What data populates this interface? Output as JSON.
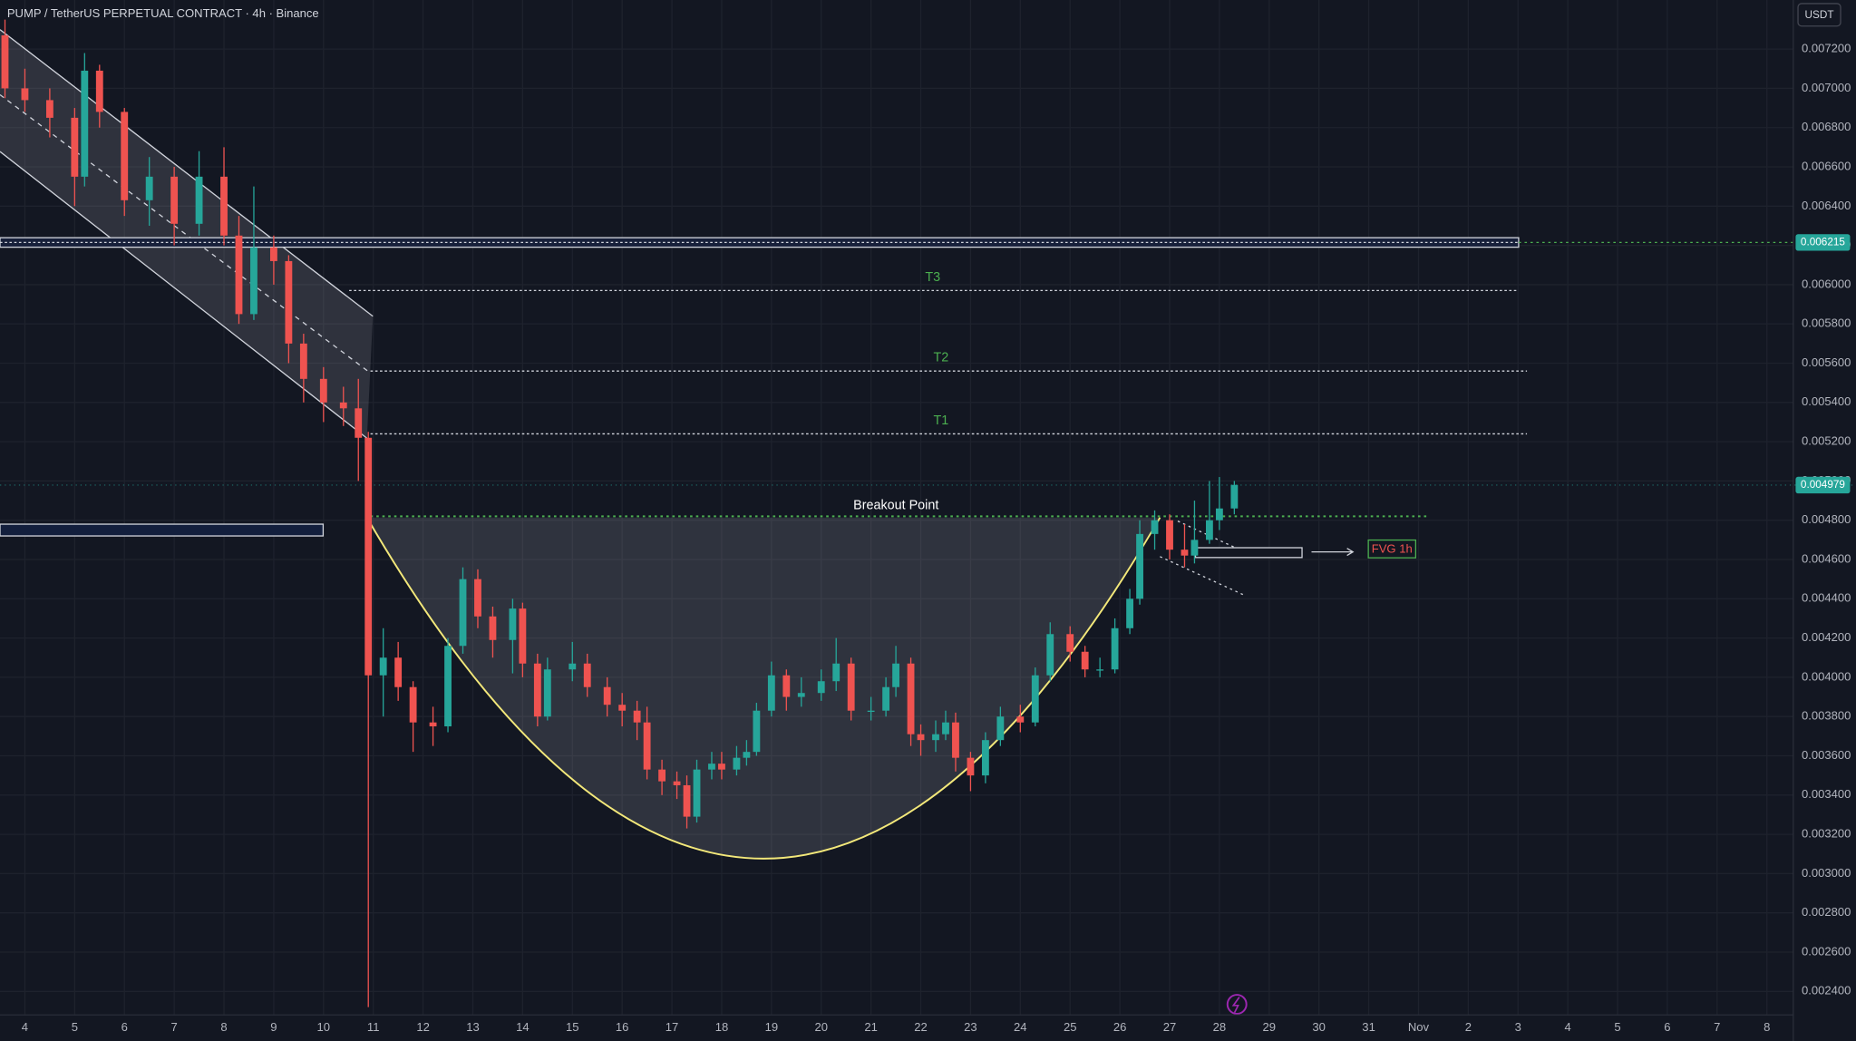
{
  "chart_data": {
    "type": "candlestick",
    "title": "PUMP / TetherUS PERPETUAL CONTRACT · 4h · Binance",
    "currency": "USDT",
    "up_color": "#26a69a",
    "down_color": "#ef5350",
    "xlim": [
      3.5,
      39.53
    ],
    "ylim": [
      0.00228,
      0.00745
    ],
    "grid": true,
    "xticks": [
      4,
      5,
      6,
      7,
      8,
      9,
      10,
      11,
      12,
      13,
      14,
      15,
      16,
      17,
      18,
      19,
      20,
      21,
      22,
      23,
      24,
      25,
      26,
      27,
      28,
      29,
      30,
      31,
      {
        "value": 32,
        "label": "Nov"
      },
      {
        "value": 33,
        "label": "2"
      },
      {
        "value": 34,
        "label": "3"
      },
      {
        "value": 35,
        "label": "4"
      },
      {
        "value": 36,
        "label": "5"
      },
      {
        "value": 37,
        "label": "6"
      },
      {
        "value": 38,
        "label": "7"
      },
      {
        "value": 39,
        "label": "8"
      }
    ],
    "yticks": [
      {
        "value": 0.0072,
        "label": "0.007200"
      },
      {
        "value": 0.007,
        "label": "0.007000"
      },
      {
        "value": 0.0068,
        "label": "0.006800"
      },
      {
        "value": 0.0066,
        "label": "0.006600"
      },
      {
        "value": 0.0064,
        "label": "0.006400"
      },
      {
        "value": 0.0062,
        "label": "0.006200"
      },
      {
        "value": 0.006,
        "label": "0.006000"
      },
      {
        "value": 0.0058,
        "label": "0.005800"
      },
      {
        "value": 0.0056,
        "label": "0.005600"
      },
      {
        "value": 0.0054,
        "label": "0.005400"
      },
      {
        "value": 0.0052,
        "label": "0.005200"
      },
      {
        "value": 0.005,
        "label": "0.005000"
      },
      {
        "value": 0.0048,
        "label": "0.004800"
      },
      {
        "value": 0.0046,
        "label": "0.004600"
      },
      {
        "value": 0.0044,
        "label": "0.004400"
      },
      {
        "value": 0.0042,
        "label": "0.004200"
      },
      {
        "value": 0.004,
        "label": "0.004000"
      },
      {
        "value": 0.0038,
        "label": "0.003800"
      },
      {
        "value": 0.0036,
        "label": "0.003600"
      },
      {
        "value": 0.0034,
        "label": "0.003400"
      },
      {
        "value": 0.0032,
        "label": "0.003200"
      },
      {
        "value": 0.003,
        "label": "0.003000"
      },
      {
        "value": 0.0028,
        "label": "0.002800"
      },
      {
        "value": 0.0026,
        "label": "0.002600"
      },
      {
        "value": 0.0024,
        "label": "0.002400"
      }
    ],
    "candles": {
      "x": [
        3.6,
        4.0,
        4.5,
        5.0,
        5.2,
        5.5,
        6.0,
        6.5,
        7.0,
        7.5,
        8.0,
        8.3,
        8.6,
        9.0,
        9.3,
        9.6,
        10.0,
        10.4,
        10.7,
        10.9,
        11.2,
        11.5,
        11.8,
        12.2,
        12.5,
        12.8,
        13.1,
        13.4,
        13.8,
        14.0,
        14.3,
        14.5,
        15.0,
        15.3,
        15.7,
        16.0,
        16.3,
        16.5,
        16.8,
        17.1,
        17.3,
        17.5,
        17.8,
        18.0,
        18.3,
        18.5,
        18.7,
        19.0,
        19.3,
        19.6,
        20.0,
        20.3,
        20.6,
        21.0,
        21.3,
        21.5,
        21.8,
        22.0,
        22.3,
        22.5,
        22.7,
        23.0,
        23.3,
        23.6,
        24.0,
        24.3,
        24.6,
        25.0,
        25.3,
        25.6,
        25.9,
        26.2,
        26.4,
        26.7,
        27.0,
        27.3,
        27.5,
        27.8,
        28.0,
        28.3
      ],
      "open": [
        0.00727,
        0.007,
        0.00694,
        0.00685,
        0.00655,
        0.00709,
        0.00688,
        0.00643,
        0.00655,
        0.00631,
        0.00655,
        0.00625,
        0.00585,
        0.00619,
        0.00612,
        0.0057,
        0.00552,
        0.0054,
        0.00537,
        0.00522,
        0.00401,
        0.0041,
        0.00395,
        0.00377,
        0.00375,
        0.00416,
        0.0045,
        0.00431,
        0.00419,
        0.00435,
        0.00407,
        0.0038,
        0.00404,
        0.00407,
        0.00395,
        0.00386,
        0.00383,
        0.00377,
        0.00353,
        0.00347,
        0.00345,
        0.00329,
        0.00353,
        0.00356,
        0.00353,
        0.00359,
        0.00362,
        0.00383,
        0.00401,
        0.0039,
        0.00392,
        0.00398,
        0.00407,
        0.00383,
        0.00383,
        0.00395,
        0.00407,
        0.00371,
        0.00368,
        0.00371,
        0.00377,
        0.00359,
        0.0035,
        0.00368,
        0.0038,
        0.00377,
        0.00401,
        0.00422,
        0.00413,
        0.00404,
        0.00404,
        0.00425,
        0.0044,
        0.00473,
        0.0048,
        0.00465,
        0.00462,
        0.0047,
        0.0048,
        0.00486
      ],
      "high": [
        0.00735,
        0.0071,
        0.007,
        0.0069,
        0.00718,
        0.00712,
        0.0069,
        0.00665,
        0.0066,
        0.00668,
        0.0067,
        0.00635,
        0.0065,
        0.00625,
        0.00615,
        0.00575,
        0.00558,
        0.00548,
        0.00552,
        0.00525,
        0.00425,
        0.00418,
        0.00398,
        0.00385,
        0.0042,
        0.00456,
        0.00455,
        0.00436,
        0.0044,
        0.00438,
        0.00412,
        0.0041,
        0.00418,
        0.00412,
        0.004,
        0.00392,
        0.00388,
        0.00385,
        0.00358,
        0.00352,
        0.0035,
        0.00358,
        0.00362,
        0.00362,
        0.00365,
        0.00368,
        0.00387,
        0.00408,
        0.00404,
        0.004,
        0.00404,
        0.0042,
        0.0041,
        0.0039,
        0.004,
        0.00416,
        0.0041,
        0.00376,
        0.00378,
        0.00383,
        0.00382,
        0.00362,
        0.00372,
        0.00385,
        0.00386,
        0.00405,
        0.00428,
        0.00426,
        0.00416,
        0.0041,
        0.0043,
        0.00445,
        0.0048,
        0.00485,
        0.00483,
        0.00478,
        0.0049,
        0.005,
        0.00502,
        0.005
      ],
      "low": [
        0.00695,
        0.00688,
        0.00675,
        0.0064,
        0.0065,
        0.0068,
        0.00635,
        0.0063,
        0.0062,
        0.00625,
        0.0062,
        0.0058,
        0.00582,
        0.006,
        0.0056,
        0.0054,
        0.0053,
        0.00528,
        0.005,
        0.00232,
        0.0038,
        0.00388,
        0.00362,
        0.00365,
        0.00372,
        0.00412,
        0.00425,
        0.0041,
        0.00402,
        0.004,
        0.00375,
        0.00378,
        0.00398,
        0.0039,
        0.0038,
        0.00375,
        0.00368,
        0.00348,
        0.0034,
        0.00338,
        0.00323,
        0.00326,
        0.00348,
        0.00348,
        0.0035,
        0.00355,
        0.0036,
        0.0038,
        0.00383,
        0.00385,
        0.00388,
        0.00393,
        0.00378,
        0.00378,
        0.0038,
        0.0039,
        0.00365,
        0.0036,
        0.00362,
        0.00368,
        0.00352,
        0.00342,
        0.00346,
        0.00365,
        0.00372,
        0.00375,
        0.00398,
        0.00408,
        0.004,
        0.004,
        0.00402,
        0.00422,
        0.00437,
        0.00465,
        0.0046,
        0.00456,
        0.00458,
        0.00468,
        0.00475,
        0.00483
      ],
      "close": [
        0.007,
        0.00694,
        0.00685,
        0.00655,
        0.00709,
        0.00688,
        0.00643,
        0.00655,
        0.00631,
        0.00655,
        0.00625,
        0.00585,
        0.00619,
        0.00612,
        0.0057,
        0.00552,
        0.0054,
        0.00537,
        0.00522,
        0.00401,
        0.0041,
        0.00395,
        0.00377,
        0.00375,
        0.00416,
        0.0045,
        0.00431,
        0.00419,
        0.00435,
        0.00407,
        0.0038,
        0.00404,
        0.00407,
        0.00395,
        0.00386,
        0.00383,
        0.00377,
        0.00353,
        0.00347,
        0.00345,
        0.00329,
        0.00353,
        0.00356,
        0.00353,
        0.00359,
        0.00362,
        0.00383,
        0.00401,
        0.0039,
        0.00392,
        0.00398,
        0.00407,
        0.00383,
        0.00383,
        0.00395,
        0.00407,
        0.00371,
        0.00368,
        0.00371,
        0.00377,
        0.00359,
        0.0035,
        0.00368,
        0.0038,
        0.00377,
        0.00401,
        0.00422,
        0.00413,
        0.00404,
        0.00404,
        0.00425,
        0.0044,
        0.00473,
        0.0048,
        0.00465,
        0.00462,
        0.0047,
        0.0048,
        0.00486,
        0.00498
      ]
    },
    "levels": [
      {
        "label": "T3",
        "value": 0.00597
      },
      {
        "label": "T2",
        "value": 0.00556
      },
      {
        "label": "T1",
        "value": 0.00524
      }
    ],
    "breakout": {
      "label": "Breakout Point",
      "value": 0.00482
    },
    "resistance": 0.006215,
    "last_price": 0.004979,
    "fvg": {
      "label": "FVG 1h",
      "top": 0.00466,
      "bottom": 0.00461
    },
    "support_box": {
      "top": 0.00478,
      "bottom": 0.00472
    }
  }
}
